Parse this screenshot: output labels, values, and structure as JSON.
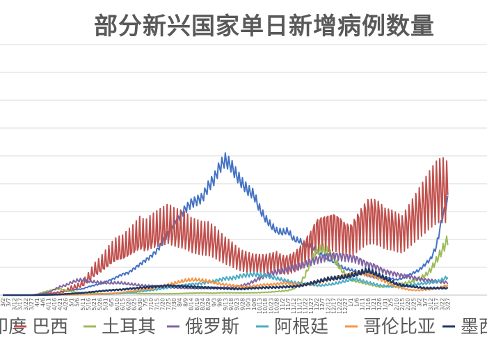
{
  "chart_data": {
    "type": "line",
    "title": "部分新兴国家单日新增病例数量",
    "xlabel": "",
    "ylabel": "",
    "grid": true,
    "legend_position": "bottom",
    "x_tick_labels": [
      "3/2",
      "3/7",
      "3/12",
      "3/17",
      "3/22",
      "3/27",
      "4/1",
      "4/6",
      "4/11",
      "4/16",
      "4/21",
      "4/26",
      "5/1",
      "5/6",
      "5/11",
      "5/16",
      "5/21",
      "5/26",
      "5/31",
      "6/5",
      "6/10",
      "6/15",
      "6/20",
      "6/25",
      "6/30",
      "7/5",
      "7/10",
      "7/15",
      "7/20",
      "7/25",
      "7/30",
      "8/4",
      "8/9",
      "8/14",
      "8/19",
      "8/24",
      "8/29",
      "9/3",
      "9/8",
      "9/13",
      "9/18",
      "9/23",
      "9/28",
      "10/3",
      "10/8",
      "10/13",
      "10/18",
      "10/23",
      "10/28",
      "11/2",
      "11/7",
      "11/12",
      "11/17",
      "11/22",
      "11/27",
      "12/2",
      "12/7",
      "12/12",
      "12/17",
      "12/22",
      "12/27",
      "1/1",
      "1/6",
      "1/11",
      "1/16",
      "1/21",
      "1/26",
      "1/31",
      "2/5",
      "2/10",
      "2/15",
      "2/20",
      "2/25",
      "3/2",
      "3/7",
      "3/12",
      "3/17",
      "3/22",
      "3/27"
    ],
    "y_gridlines": 9,
    "series": [
      {
        "name": "印度",
        "color": "#4472C4",
        "values": [
          0,
          0,
          0,
          0,
          0,
          0,
          500,
          1000,
          1000,
          1500,
          2000,
          3000,
          3500,
          4000,
          4500,
          6000,
          7000,
          8000,
          9500,
          11000,
          13000,
          15000,
          16000,
          19000,
          22000,
          25000,
          28000,
          32000,
          38000,
          45000,
          52000,
          57000,
          62000,
          66000,
          68000,
          70000,
          78000,
          83000,
          92000,
          97000,
          93000,
          86000,
          80000,
          75000,
          72000,
          62000,
          55000,
          50000,
          46000,
          45000,
          46000,
          40000,
          39000,
          36000,
          35000,
          31000,
          29000,
          26000,
          24000,
          21000,
          19000,
          18000,
          17000,
          16000,
          14000,
          13000,
          12000,
          13000,
          12000,
          11000,
          12000,
          14000,
          16000,
          18000,
          22000,
          26000,
          35000,
          55000,
          68000
        ]
      },
      {
        "name": "巴西",
        "color": "#C0504D",
        "values": [
          0,
          0,
          0,
          0,
          0,
          0,
          500,
          1000,
          1000,
          1500,
          2000,
          3000,
          5000,
          6000,
          8000,
          12000,
          17000,
          20000,
          24000,
          28000,
          31000,
          32000,
          35000,
          38000,
          42000,
          40000,
          43000,
          45000,
          47000,
          49000,
          47000,
          46000,
          45000,
          42000,
          41000,
          40000,
          40000,
          38000,
          35000,
          32000,
          30000,
          27000,
          25000,
          24000,
          23000,
          23000,
          23000,
          24000,
          25000,
          23000,
          23000,
          25000,
          28000,
          33000,
          38000,
          45000,
          47000,
          48000,
          49000,
          47000,
          43000,
          42000,
          47000,
          52000,
          56000,
          56000,
          54000,
          50000,
          49000,
          47000,
          45000,
          50000,
          55000,
          60000,
          65000,
          70000,
          74000,
          76000,
          73000
        ]
      },
      {
        "name": "土耳其",
        "color": "#9BBB59",
        "values": [
          0,
          0,
          0,
          0,
          0,
          0,
          500,
          2000,
          3000,
          4000,
          4500,
          3500,
          2500,
          2000,
          1800,
          1600,
          1200,
          1000,
          900,
          900,
          1000,
          1200,
          1400,
          1300,
          1100,
          1000,
          1000,
          950,
          950,
          950,
          1000,
          1100,
          1300,
          1400,
          1500,
          1600,
          1500,
          1400,
          1600,
          1700,
          1700,
          1600,
          1600,
          1600,
          1700,
          1800,
          2000,
          2200,
          2600,
          2900,
          3300,
          4500,
          8000,
          14000,
          24000,
          31000,
          33000,
          31000,
          26000,
          20000,
          15000,
          11000,
          10000,
          9000,
          8000,
          7000,
          6000,
          6000,
          7000,
          8000,
          8000,
          9000,
          10000,
          12000,
          14000,
          18000,
          25000,
          32000,
          40000
        ]
      },
      {
        "name": "俄罗斯",
        "color": "#8064A2",
        "values": [
          0,
          0,
          0,
          0,
          0,
          0,
          500,
          1000,
          2000,
          4000,
          6000,
          7000,
          9000,
          10500,
          11000,
          10000,
          9500,
          9000,
          8800,
          8700,
          8800,
          8600,
          8000,
          7600,
          7000,
          6700,
          6500,
          6200,
          5800,
          5600,
          5400,
          5200,
          5100,
          5000,
          4900,
          5000,
          5100,
          5200,
          5300,
          5400,
          5600,
          6000,
          7000,
          8000,
          10000,
          12000,
          14000,
          15500,
          16500,
          17500,
          19000,
          20000,
          21000,
          22500,
          24000,
          25500,
          26500,
          28000,
          28500,
          28000,
          27500,
          27000,
          26000,
          24000,
          22000,
          21000,
          19000,
          17000,
          16000,
          15000,
          14000,
          13500,
          12500,
          11500,
          11000,
          10500,
          10000,
          9500,
          9000
        ]
      },
      {
        "name": "阿根廷",
        "color": "#4BACC6",
        "values": [
          0,
          0,
          0,
          0,
          0,
          0,
          0,
          0,
          100,
          100,
          100,
          100,
          200,
          200,
          300,
          400,
          500,
          600,
          700,
          900,
          1200,
          1500,
          1800,
          2100,
          2600,
          3000,
          3500,
          4000,
          4800,
          5400,
          6000,
          6800,
          7300,
          7800,
          8000,
          8500,
          9500,
          10000,
          11000,
          12000,
          12000,
          13000,
          14000,
          14500,
          15000,
          14500,
          14000,
          13000,
          12000,
          11000,
          10000,
          9000,
          8500,
          8000,
          7500,
          7000,
          7000,
          7500,
          8000,
          9000,
          10000,
          11000,
          11500,
          10000,
          9000,
          8000,
          7000,
          6500,
          6000,
          6000,
          6500,
          7000,
          7500,
          8000,
          8500,
          9000,
          9500,
          11000,
          13000
        ]
      },
      {
        "name": "哥伦比亚",
        "color": "#F79646",
        "values": [
          0,
          0,
          0,
          0,
          0,
          0,
          0,
          100,
          100,
          200,
          200,
          200,
          300,
          300,
          400,
          500,
          600,
          800,
          1000,
          1300,
          1600,
          2000,
          2500,
          3000,
          3500,
          4000,
          4500,
          5500,
          6500,
          7500,
          8500,
          9500,
          10500,
          11000,
          11000,
          10500,
          10000,
          9000,
          8000,
          7500,
          7000,
          6500,
          6000,
          6000,
          6500,
          7000,
          7500,
          7500,
          8000,
          8500,
          8500,
          8000,
          7500,
          7500,
          8000,
          9000,
          10000,
          11000,
          12000,
          13000,
          14000,
          15000,
          15500,
          16000,
          15000,
          14000,
          12000,
          10000,
          8000,
          6000,
          5000,
          4000,
          3500,
          3500,
          3800,
          4200,
          5000,
          6000,
          7000
        ]
      },
      {
        "name": "墨西哥",
        "color": "#1F3864",
        "values": [
          0,
          0,
          0,
          0,
          0,
          0,
          0,
          100,
          200,
          300,
          500,
          800,
          1000,
          1300,
          1600,
          2000,
          2400,
          2800,
          3200,
          3500,
          3800,
          4000,
          4500,
          4800,
          5200,
          5500,
          6000,
          6200,
          6500,
          6800,
          6600,
          6400,
          6200,
          6000,
          5800,
          5600,
          5400,
          5200,
          5000,
          4800,
          4600,
          4500,
          4500,
          4800,
          5000,
          5200,
          5400,
          5500,
          5600,
          5800,
          6000,
          6200,
          6500,
          7500,
          8500,
          9500,
          10500,
          11500,
          12000,
          12500,
          13000,
          14000,
          15000,
          16500,
          17500,
          16000,
          14000,
          12000,
          10000,
          8000,
          7000,
          6500,
          6000,
          5500,
          5000,
          5000,
          5000,
          5000,
          5000
        ]
      }
    ]
  }
}
